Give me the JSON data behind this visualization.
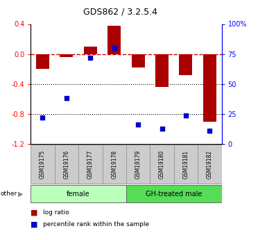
{
  "title": "GDS862 / 3.2.5.4",
  "samples": [
    "GSM19175",
    "GSM19176",
    "GSM19177",
    "GSM19178",
    "GSM19179",
    "GSM19180",
    "GSM19181",
    "GSM19182"
  ],
  "log_ratio": [
    -0.2,
    -0.04,
    0.1,
    0.38,
    -0.18,
    -0.44,
    -0.28,
    -0.9
  ],
  "percentile_rank": [
    22,
    38,
    72,
    80,
    16,
    13,
    24,
    11
  ],
  "groups": [
    {
      "label": "female",
      "start": 0,
      "end": 4,
      "color": "#bbffbb"
    },
    {
      "label": "GH-treated male",
      "start": 4,
      "end": 8,
      "color": "#55dd55"
    }
  ],
  "ylim": [
    -1.2,
    0.4
  ],
  "yticks_left": [
    -1.2,
    -0.8,
    -0.4,
    0.0,
    0.4
  ],
  "yticks_right": [
    0,
    25,
    50,
    75,
    100
  ],
  "bar_color": "#aa0000",
  "dot_color": "#0000cc",
  "hline_color": "#cc0000",
  "background_color": "#ffffff",
  "legend_items": [
    "log ratio",
    "percentile rank within the sample"
  ]
}
